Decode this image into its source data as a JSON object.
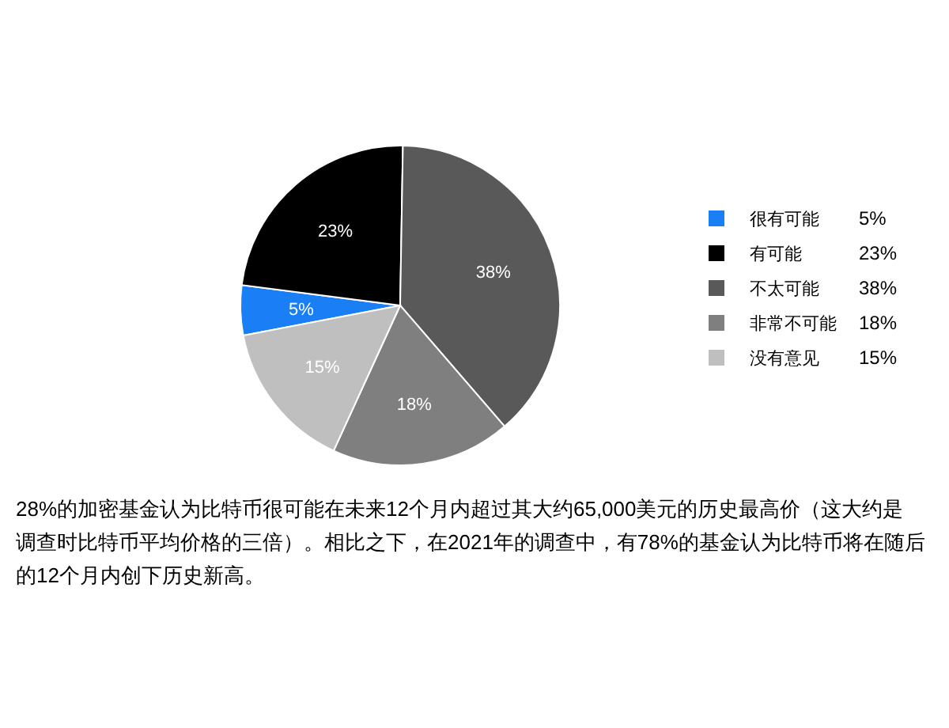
{
  "chart_data": {
    "type": "pie",
    "categories": [
      "很有可能",
      "有可能",
      "不太可能",
      "非常不可能",
      "没有意见"
    ],
    "values": [
      5,
      23,
      38,
      18,
      15
    ],
    "colors": [
      "#1a7ef5",
      "#000000",
      "#595959",
      "#7f7f7f",
      "#bfbfbf"
    ],
    "value_labels": [
      "5%",
      "23%",
      "38%",
      "18%",
      "15%"
    ],
    "legend": "right",
    "annotations": [
      "28%的加密基金认为比特币很可能在未来12个月内超过其大约65,000美元的历史最高价（这大约是调查时比特币平均价格的三倍）。相比之下，在2021年的调查中，有78%的基金认为比特币将在随后的12个月内创下历史新高。"
    ]
  }
}
